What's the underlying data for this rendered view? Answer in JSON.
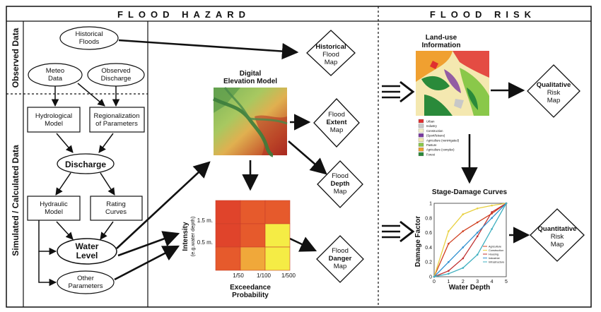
{
  "headers": {
    "hazard": "FLOOD HAZARD",
    "risk": "FLOOD RISK"
  },
  "side_labels": {
    "observed": "Observed Data",
    "simulated": "Simulated / Calculated Data"
  },
  "nodes": {
    "historical_floods": [
      "Historical",
      "Floods"
    ],
    "meteo_data": [
      "Meteo",
      "Data"
    ],
    "observed_discharge": [
      "Observed",
      "Discharge"
    ],
    "hydrological_model": [
      "Hydrological",
      "Model"
    ],
    "regionalization": [
      "Regionalization",
      "of Parameters"
    ],
    "discharge": "Discharge",
    "hydraulic_model": [
      "Hydraulic",
      "Model"
    ],
    "rating_curves": [
      "Rating",
      "Curves"
    ],
    "water_level": [
      "Water",
      "Level"
    ],
    "other_parameters": [
      "Other",
      "Parameters"
    ]
  },
  "maps": {
    "historical": [
      "Historical",
      "Flood",
      "Map"
    ],
    "extent": [
      "Flood",
      "Extent",
      "Map"
    ],
    "depth": [
      "Flood",
      "Depth",
      "Map"
    ],
    "danger": [
      "Flood",
      "Danger",
      "Map"
    ],
    "qualitative": [
      "Qualitative",
      "Risk",
      "Map"
    ],
    "quantitative": [
      "Quantitative",
      "Risk",
      "Map"
    ]
  },
  "dem": {
    "title": [
      "Digital",
      "Elevation Model"
    ]
  },
  "matrix": {
    "ylabel": "Intensity",
    "ylabel_sub": "(e.g.water depth)",
    "y_ticks": [
      "1.5 m.",
      "0.5 m."
    ],
    "x_ticks": [
      "1/50",
      "1/100",
      "1/500"
    ],
    "xlabel": [
      "Exceedance",
      "Probability"
    ],
    "colors": [
      [
        "#e0442b",
        "#e65a2c",
        "#e65a2c"
      ],
      [
        "#e0442b",
        "#e65a2c",
        "#f5ec45"
      ],
      [
        "#e65a2c",
        "#f0a83a",
        "#f5ec45"
      ]
    ]
  },
  "landuse": {
    "title": [
      "Land-use",
      "Information"
    ],
    "legend": [
      {
        "label": "Urban",
        "color": "#e03030"
      },
      {
        "label": "Industry",
        "color": "#c8c8c8"
      },
      {
        "label": "Construction",
        "color": "#f4f0c8"
      },
      {
        "label": "(Sport/leisure)",
        "color": "#7a3aa0"
      },
      {
        "label": "Agriculture (nonirrigated)",
        "color": "#f4e8b0"
      },
      {
        "label": "Pasture",
        "color": "#8ac84a"
      },
      {
        "label": "Agriculture (complex)",
        "color": "#f0a030"
      },
      {
        "label": "Forest",
        "color": "#2a8a3a"
      }
    ]
  },
  "stage_damage": {
    "title": "Stage-Damage Curves",
    "ylabel": "Damage Factor",
    "xlabel": "Water Depth",
    "x_ticks": [
      "0",
      "1",
      "2",
      "3",
      "4",
      "5"
    ],
    "y_ticks": [
      "0",
      "0.2",
      "0.4",
      "0.6",
      "0.8",
      "1"
    ],
    "legend": [
      {
        "label": "Agriculture",
        "color": "#d04020"
      },
      {
        "label": "Construction",
        "color": "#e8d040"
      },
      {
        "label": "Housing",
        "color": "#c03030"
      },
      {
        "label": "Industrial",
        "color": "#3090d0"
      },
      {
        "label": "Infrastructure",
        "color": "#40b0c0"
      }
    ]
  },
  "chart_data": {
    "type": "line",
    "title": "Stage-Damage Curves",
    "xlabel": "Water Depth",
    "ylabel": "Damage Factor",
    "xlim": [
      0,
      5
    ],
    "ylim": [
      0,
      1
    ],
    "series": [
      {
        "name": "Agriculture",
        "x": [
          0,
          1,
          2,
          3,
          4,
          5
        ],
        "values": [
          0,
          0.45,
          0.62,
          0.74,
          0.86,
          1.0
        ]
      },
      {
        "name": "Construction",
        "x": [
          0,
          1,
          2,
          3,
          4,
          5
        ],
        "values": [
          0,
          0.62,
          0.85,
          0.93,
          0.97,
          1.0
        ]
      },
      {
        "name": "Housing",
        "x": [
          0,
          1,
          2,
          3,
          4,
          5
        ],
        "values": [
          0,
          0.08,
          0.25,
          0.55,
          0.88,
          1.0
        ]
      },
      {
        "name": "Industrial",
        "x": [
          0,
          1,
          2,
          3,
          4,
          5
        ],
        "values": [
          0,
          0.2,
          0.4,
          0.6,
          0.8,
          1.0
        ]
      },
      {
        "name": "Infrastructure",
        "x": [
          0,
          1,
          2,
          3,
          4,
          5
        ],
        "values": [
          0,
          0.04,
          0.12,
          0.3,
          0.65,
          1.0
        ]
      }
    ]
  }
}
